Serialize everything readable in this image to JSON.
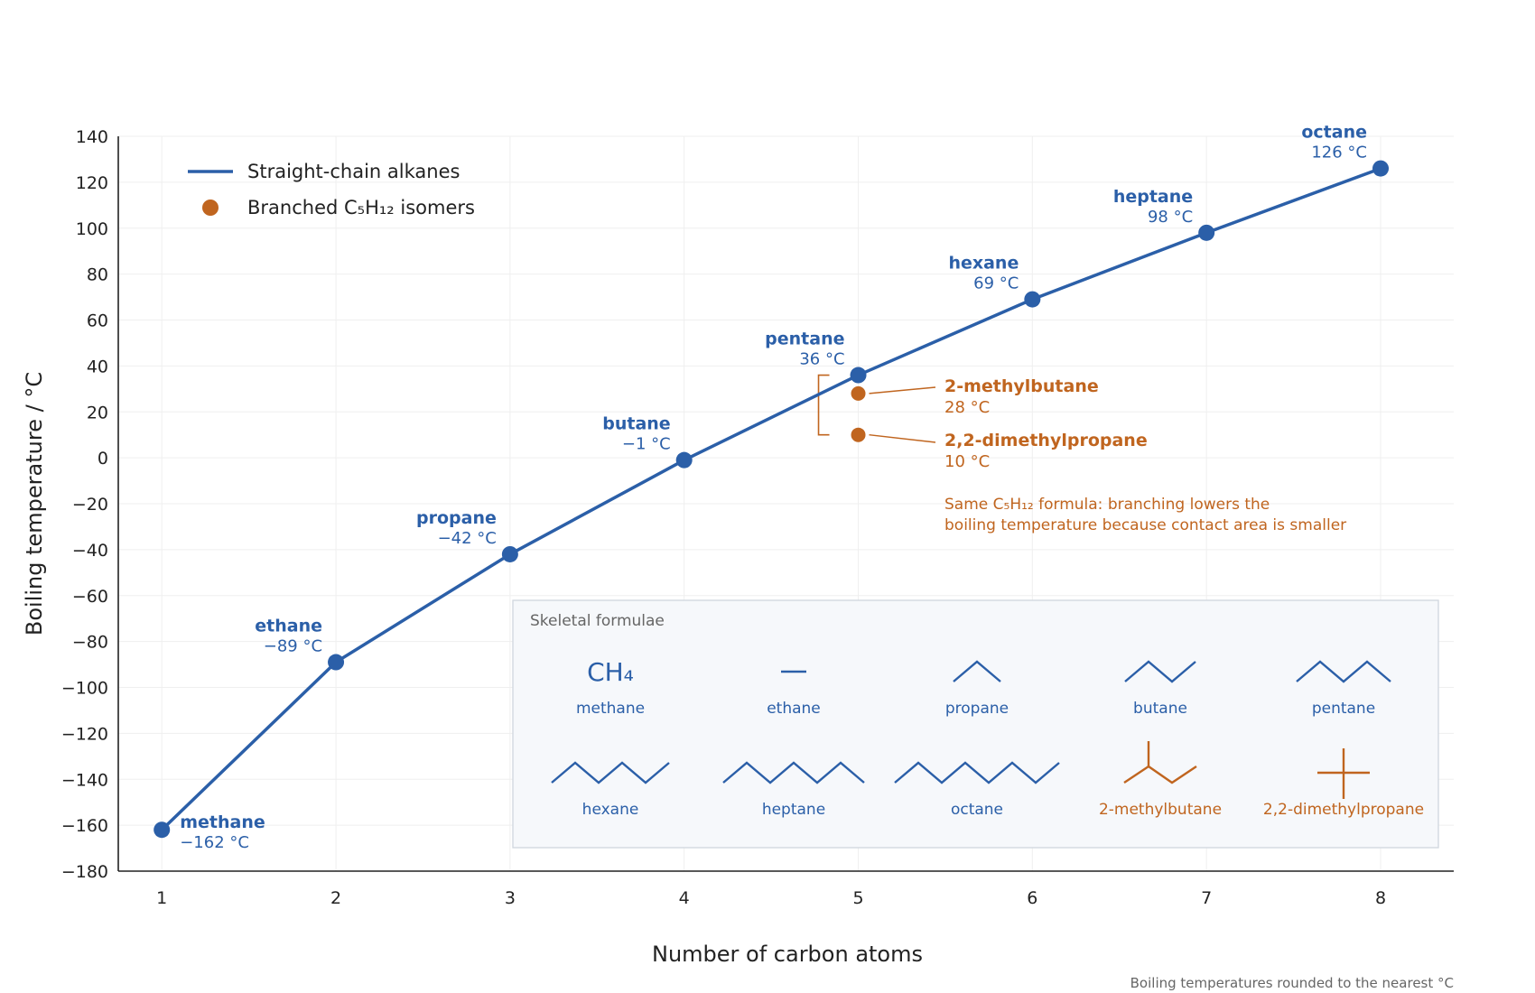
{
  "chart_data": {
    "type": "line",
    "xlabel": "Number of carbon atoms",
    "ylabel": "Boiling temperature / °C",
    "xlim": [
      0.75,
      8.42
    ],
    "ylim": [
      -180,
      140
    ],
    "x_ticks": [
      1,
      2,
      3,
      4,
      5,
      6,
      7,
      8
    ],
    "y_ticks": [
      -180,
      -160,
      -140,
      -120,
      -100,
      -80,
      -60,
      -40,
      -20,
      0,
      20,
      40,
      60,
      80,
      100,
      120,
      140
    ],
    "grid": true,
    "legend_position": "top-left",
    "colors": {
      "straight": "#2b5fa8",
      "branched": "#c0651f"
    },
    "series": [
      {
        "name": "Straight-chain alkanes",
        "x": [
          1,
          2,
          3,
          4,
          5,
          6,
          7,
          8
        ],
        "y": [
          -162,
          -89,
          -42,
          -1,
          36,
          69,
          98,
          126
        ],
        "labels": [
          "methane",
          "ethane",
          "propane",
          "butane",
          "pentane",
          "hexane",
          "heptane",
          "octane"
        ],
        "value_labels": [
          "−162 °C",
          "−89 °C",
          "−42 °C",
          "−1 °C",
          "36 °C",
          "69 °C",
          "98 °C",
          "126 °C"
        ]
      },
      {
        "name": "Branched C₅H₁₂ isomers",
        "x": [
          5,
          5
        ],
        "y": [
          28,
          10
        ],
        "labels": [
          "2-methylbutane",
          "2,2-dimethylpropane"
        ],
        "value_labels": [
          "28 °C",
          "10 °C"
        ]
      }
    ],
    "annotation": [
      "Same C₅H₁₂ formula: branching lowers the",
      "boiling temperature because contact area is smaller"
    ],
    "inset": {
      "title": "Skeletal formulae",
      "methane_formula": "CH₄",
      "items": [
        {
          "name": "methane",
          "kind": "formula",
          "color": "#2b5fa8"
        },
        {
          "name": "ethane",
          "kind": "chain",
          "n": 2,
          "color": "#2b5fa8"
        },
        {
          "name": "propane",
          "kind": "chain",
          "n": 3,
          "color": "#2b5fa8"
        },
        {
          "name": "butane",
          "kind": "chain",
          "n": 4,
          "color": "#2b5fa8"
        },
        {
          "name": "pentane",
          "kind": "chain",
          "n": 5,
          "color": "#2b5fa8"
        },
        {
          "name": "hexane",
          "kind": "chain",
          "n": 6,
          "color": "#2b5fa8"
        },
        {
          "name": "heptane",
          "kind": "chain",
          "n": 7,
          "color": "#2b5fa8"
        },
        {
          "name": "octane",
          "kind": "chain",
          "n": 8,
          "color": "#2b5fa8"
        },
        {
          "name": "2-methylbutane",
          "kind": "branch1",
          "color": "#c0651f"
        },
        {
          "name": "2,2-dimethylpropane",
          "kind": "branch2",
          "color": "#c0651f"
        }
      ]
    },
    "footnote": "Boiling temperatures rounded to the nearest °C"
  }
}
